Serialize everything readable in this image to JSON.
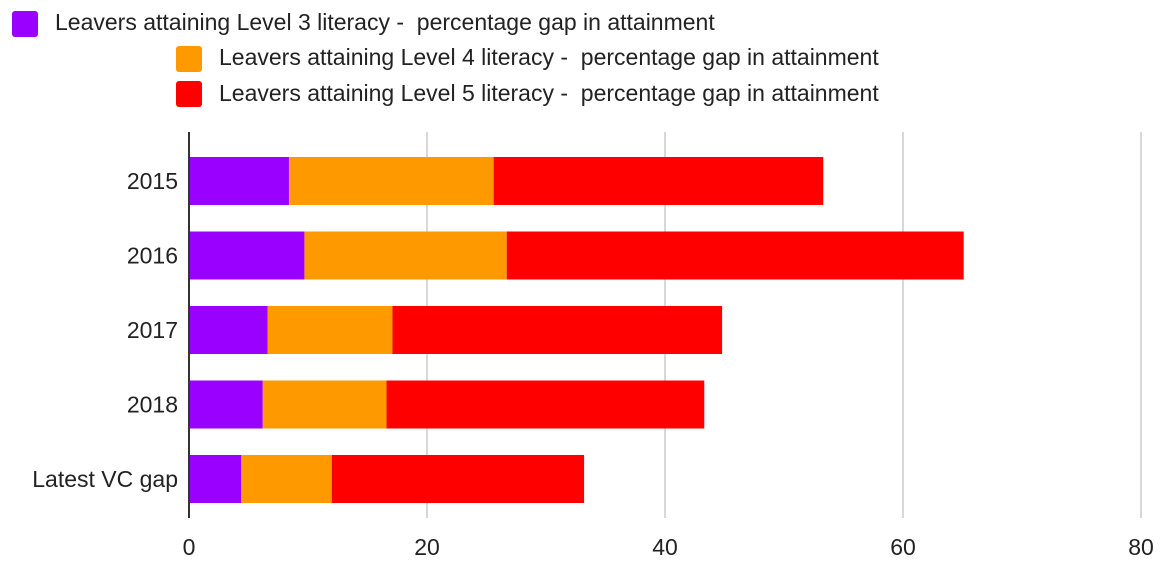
{
  "chart_data": {
    "type": "bar",
    "orientation": "horizontal",
    "stacked": true,
    "title": "",
    "xlabel": "",
    "ylabel": "",
    "categories": [
      "2015",
      "2016",
      "2017",
      "2018",
      "Latest VC gap"
    ],
    "series": [
      {
        "name": "Leavers attaining Level 3 literacy -  percentage gap in attainment",
        "color": "#9900ff",
        "values": [
          8.4,
          9.7,
          6.6,
          6.2,
          4.4
        ]
      },
      {
        "name": "Leavers attaining Level 4 literacy -  percentage gap in attainment",
        "color": "#ff9900",
        "values": [
          17.2,
          17.0,
          10.5,
          10.4,
          7.6
        ]
      },
      {
        "name": "Leavers attaining Level 5 literacy -  percentage gap in attainment",
        "color": "#ff0000",
        "values": [
          27.7,
          38.4,
          27.7,
          26.7,
          21.2
        ]
      }
    ],
    "xlim": [
      0,
      80
    ],
    "x_ticks": [
      "0",
      "20",
      "40",
      "60",
      "80"
    ],
    "grid": true,
    "legend_position": "top"
  }
}
